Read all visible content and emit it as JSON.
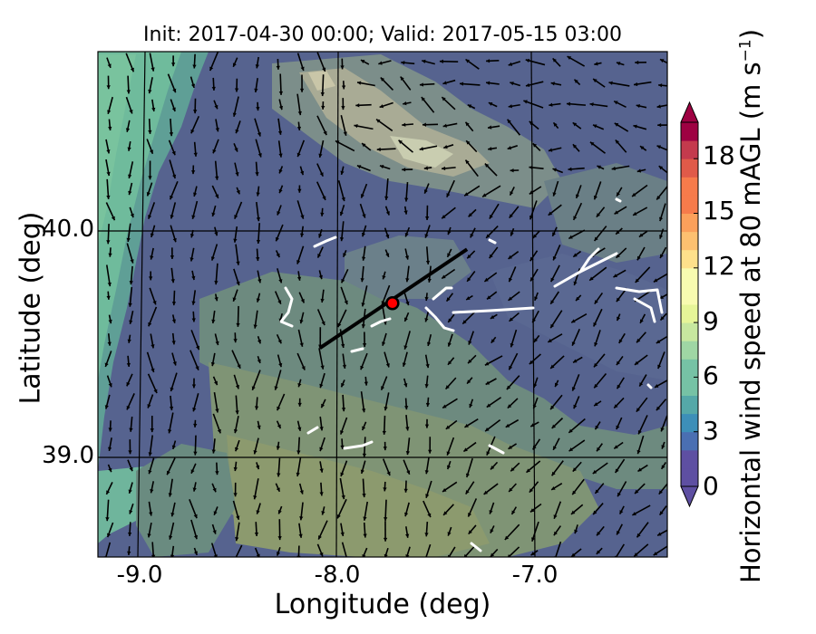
{
  "title": "Init: 2017-04-30 00:00; Valid: 2017-05-15 03:00",
  "xlabel": "Longitude (deg)",
  "ylabel": "Latitude (deg)",
  "colorbar": {
    "label": "Horizontal wind speed at 80 mAGL (m s",
    "label_sup": "−1",
    "label_close": ")",
    "ticks": [
      "0",
      "3",
      "6",
      "9",
      "12",
      "15",
      "18"
    ],
    "range": [
      0,
      20
    ],
    "levels": 20,
    "colormap": [
      "#5e4fa2",
      "#4a6fb2",
      "#3d8fb8",
      "#55a8a8",
      "#76c2a5",
      "#9fd6a4",
      "#c7e79f",
      "#e6f598",
      "#f8fbb0",
      "#fee08b",
      "#fdc070",
      "#fba05b",
      "#f67b4b",
      "#e05a49",
      "#c43a4d",
      "#9e0142"
    ],
    "extend": "both"
  },
  "x_axis": {
    "range": [
      -9.25,
      -6.35
    ],
    "ticks": [
      "-9.0",
      "-8.0",
      "-7.0"
    ]
  },
  "y_axis": {
    "range": [
      38.55,
      40.8
    ],
    "ticks": [
      "39.0",
      "40.0"
    ]
  },
  "transect": {
    "start": [
      -8.12,
      39.48
    ],
    "end": [
      -7.37,
      39.92
    ]
  },
  "marker": {
    "lon": -7.75,
    "lat": 39.68,
    "color": "#ff0000"
  }
}
